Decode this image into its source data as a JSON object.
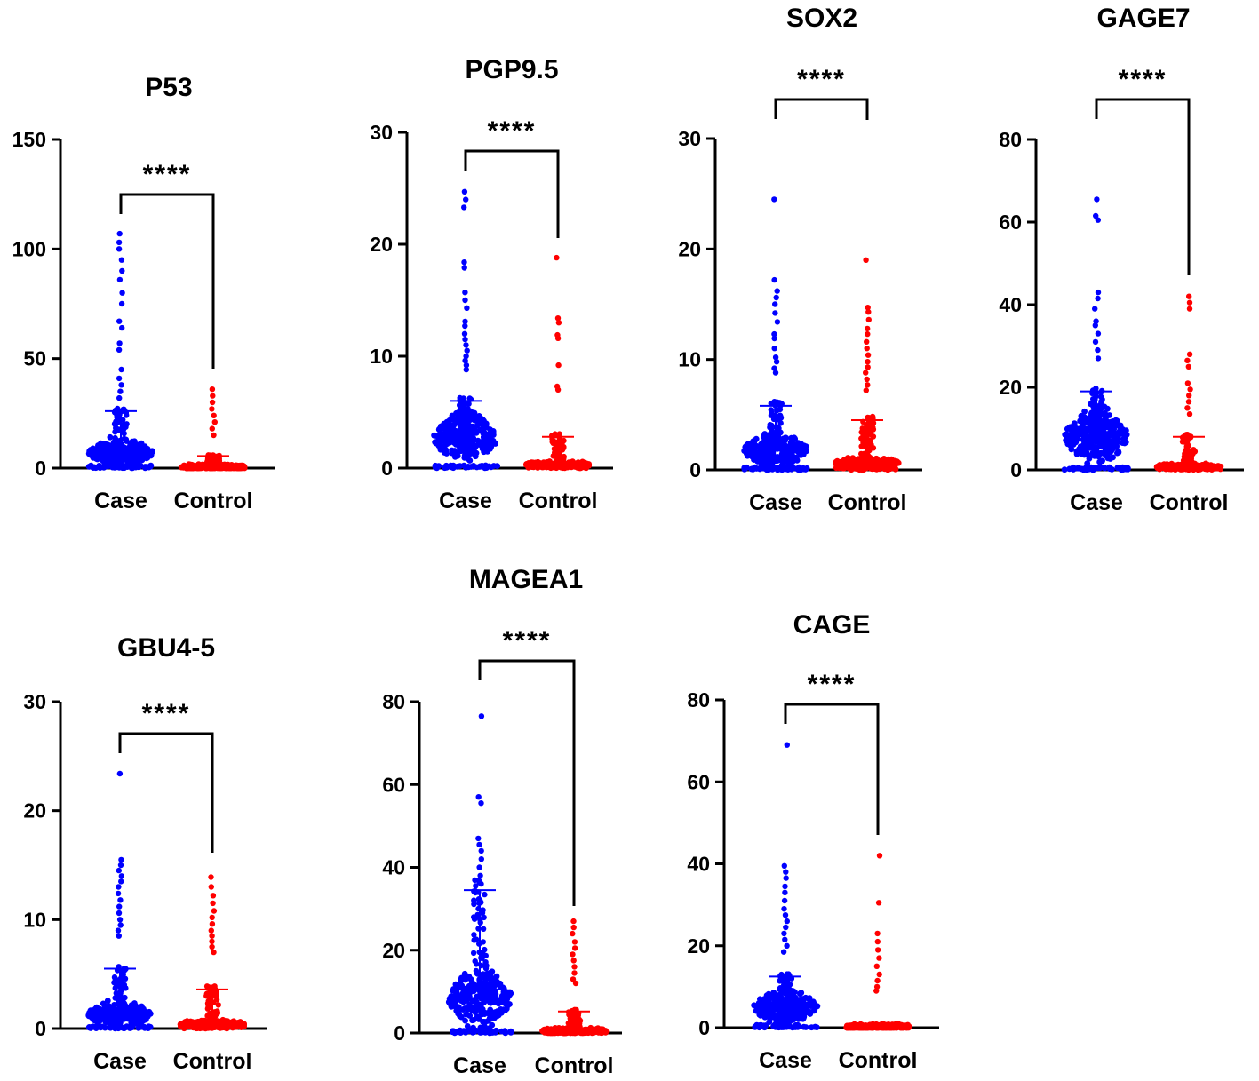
{
  "chart_data": [
    {
      "type": "scatter",
      "title": "P53",
      "categories": [
        "Case",
        "Control"
      ],
      "ylim": [
        0,
        150
      ],
      "yticks": [
        0,
        50,
        100,
        150
      ],
      "significance": "****",
      "series": [
        {
          "name": "Case",
          "color": "#0000ff",
          "mean_plus_sd": 26,
          "median": 7,
          "max": 107,
          "outliers": [
            107,
            103,
            100,
            95,
            90,
            86,
            80,
            75,
            67,
            64,
            57,
            54,
            45,
            41,
            38,
            35,
            32
          ]
        },
        {
          "name": "Control",
          "color": "#ff0000",
          "mean_plus_sd": 5.5,
          "median": 0.5,
          "max": 36,
          "outliers": [
            36,
            33,
            30,
            27,
            24,
            21,
            18,
            15
          ]
        }
      ]
    },
    {
      "type": "scatter",
      "title": "PGP9.5",
      "categories": [
        "Case",
        "Control"
      ],
      "ylim": [
        0,
        30
      ],
      "yticks": [
        0,
        10,
        20,
        30
      ],
      "significance": "****",
      "series": [
        {
          "name": "Case",
          "color": "#0000ff",
          "mean_plus_sd": 6,
          "median": 2.7,
          "max": 24.7,
          "outliers": [
            24.7,
            24,
            23.3,
            18.4,
            17.9,
            15.7,
            15,
            14.3,
            13.1,
            12.7,
            12,
            11.5,
            11,
            10.5,
            10,
            9.6,
            9.2,
            8.8
          ]
        },
        {
          "name": "Control",
          "color": "#ff0000",
          "mean_plus_sd": 2.8,
          "median": 0.3,
          "max": 18.8,
          "outliers": [
            18.8,
            13.4,
            13,
            11.9,
            11.6,
            9.2,
            7.3,
            7
          ]
        }
      ]
    },
    {
      "type": "scatter",
      "title": "SOX2",
      "categories": [
        "Case",
        "Control"
      ],
      "ylim": [
        0,
        30
      ],
      "yticks": [
        0,
        10,
        20,
        30
      ],
      "significance": "****",
      "series": [
        {
          "name": "Case",
          "color": "#0000ff",
          "mean_plus_sd": 5.8,
          "median": 1.8,
          "max": 24.5,
          "outliers": [
            24.5,
            17.2,
            16.2,
            15.6,
            15,
            14.2,
            13.4,
            12.3,
            11.9,
            11,
            10.2,
            9.8,
            9.2,
            8.8
          ]
        },
        {
          "name": "Control",
          "color": "#ff0000",
          "mean_plus_sd": 4.5,
          "median": 0.6,
          "max": 19,
          "outliers": [
            19,
            14.7,
            14.3,
            13.6,
            12.8,
            12.3,
            11.6,
            11,
            10.4,
            9.8,
            9.3,
            8.8,
            8.2,
            7.7,
            7.2
          ]
        }
      ]
    },
    {
      "type": "scatter",
      "title": "GAGE7",
      "categories": [
        "Case",
        "Control"
      ],
      "ylim": [
        0,
        80
      ],
      "yticks": [
        0,
        20,
        40,
        60,
        80
      ],
      "significance": "****",
      "series": [
        {
          "name": "Case",
          "color": "#0000ff",
          "mean_plus_sd": 19,
          "median": 8,
          "max": 65.5,
          "outliers": [
            65.5,
            61.5,
            60.5,
            43,
            41.5,
            39,
            36,
            35,
            33,
            31,
            29,
            27
          ]
        },
        {
          "name": "Control",
          "color": "#ff0000",
          "mean_plus_sd": 8,
          "median": 0.8,
          "max": 42,
          "outliers": [
            42,
            40.5,
            39,
            28,
            26.5,
            25,
            21,
            19.5,
            18,
            16.5,
            15,
            13.5
          ]
        }
      ]
    },
    {
      "type": "scatter",
      "title": "GBU4-5",
      "categories": [
        "Case",
        "Control"
      ],
      "ylim": [
        0,
        30
      ],
      "yticks": [
        0,
        10,
        20,
        30
      ],
      "significance": "****",
      "series": [
        {
          "name": "Case",
          "color": "#0000ff",
          "mean_plus_sd": 5.5,
          "median": 1.3,
          "max": 23.4,
          "outliers": [
            23.4,
            15.5,
            15,
            14.5,
            14,
            13.5,
            13,
            12.4,
            11.8,
            11.2,
            10.6,
            10,
            9.5,
            9,
            8.5
          ]
        },
        {
          "name": "Control",
          "color": "#ff0000",
          "mean_plus_sd": 3.6,
          "median": 0.4,
          "max": 13.9,
          "outliers": [
            13.9,
            13,
            12.2,
            11.5,
            10.8,
            10.2,
            9.6,
            9,
            8.5,
            8,
            7.5,
            7
          ]
        }
      ]
    },
    {
      "type": "scatter",
      "title": "MAGEA1",
      "categories": [
        "Case",
        "Control"
      ],
      "ylim": [
        0,
        80
      ],
      "yticks": [
        0,
        20,
        40,
        60,
        80
      ],
      "significance": "****",
      "series": [
        {
          "name": "Case",
          "color": "#0000ff",
          "mean_plus_sd": 34.5,
          "median": 8.5,
          "max": 76.5,
          "outliers": [
            76.5,
            57,
            55.5,
            47,
            45.5,
            44,
            42,
            40,
            38,
            36,
            34,
            32,
            30,
            28
          ]
        },
        {
          "name": "Control",
          "color": "#ff0000",
          "mean_plus_sd": 5.2,
          "median": 0.5,
          "max": 27,
          "outliers": [
            27,
            25.5,
            24,
            22,
            20.5,
            19,
            17.5,
            16,
            14.5,
            13,
            12
          ]
        }
      ]
    },
    {
      "type": "scatter",
      "title": "CAGE",
      "categories": [
        "Case",
        "Control"
      ],
      "ylim": [
        0,
        80
      ],
      "yticks": [
        0,
        20,
        40,
        60,
        80
      ],
      "significance": "****",
      "series": [
        {
          "name": "Case",
          "color": "#0000ff",
          "mean_plus_sd": 12.5,
          "median": 5,
          "max": 69,
          "outliers": [
            69,
            39.5,
            38,
            36.5,
            34.5,
            33,
            31,
            29,
            27.5,
            26,
            24.5,
            23,
            21.5,
            20,
            18.5
          ]
        },
        {
          "name": "Control",
          "color": "#ff0000",
          "mean_plus_sd": 0.8,
          "median": 0.2,
          "max": 42,
          "outliers": [
            42,
            30.5,
            23,
            21,
            19,
            17,
            15,
            13,
            11.5,
            10,
            9
          ]
        }
      ]
    }
  ]
}
